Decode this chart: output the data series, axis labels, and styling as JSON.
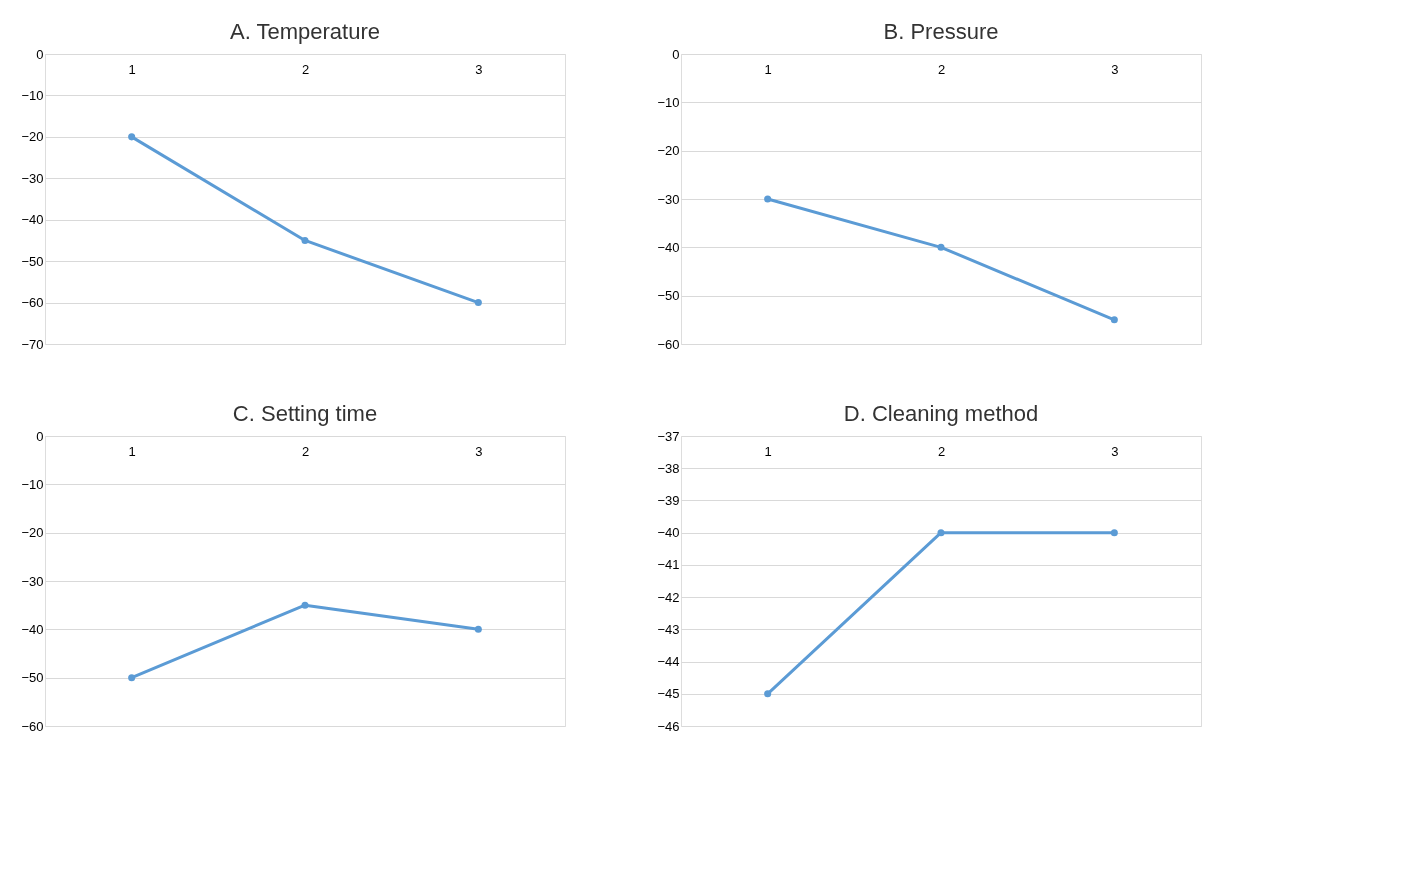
{
  "chart_data": [
    {
      "type": "line",
      "title": "A.     Temperature",
      "categories": [
        "1",
        "2",
        "3"
      ],
      "series": [
        {
          "color": "#5b9bd5",
          "values": [
            -20,
            -45,
            -60
          ]
        }
      ],
      "ylim": [
        -70,
        0
      ],
      "yticks": [
        -70,
        -60,
        -50,
        -40,
        -30,
        -20,
        -10,
        0
      ],
      "grid": "y",
      "marker": "circle",
      "legend": false
    },
    {
      "type": "line",
      "title": "B.     Pressure",
      "categories": [
        "1",
        "2",
        "3"
      ],
      "series": [
        {
          "color": "#5b9bd5",
          "values": [
            -30,
            -40,
            -55
          ]
        }
      ],
      "ylim": [
        -60,
        0
      ],
      "yticks": [
        -60,
        -50,
        -40,
        -30,
        -20,
        -10,
        0
      ],
      "grid": "y",
      "marker": "circle",
      "legend": false
    },
    {
      "type": "line",
      "title": "C.     Setting time",
      "categories": [
        "1",
        "2",
        "3"
      ],
      "series": [
        {
          "color": "#5b9bd5",
          "values": [
            -50,
            -35,
            -40
          ]
        }
      ],
      "ylim": [
        -60,
        0
      ],
      "yticks": [
        -60,
        -50,
        -40,
        -30,
        -20,
        -10,
        0
      ],
      "grid": "y",
      "marker": "circle",
      "legend": false
    },
    {
      "type": "line",
      "title": "D.     Cleaning method",
      "categories": [
        "1",
        "2",
        "3"
      ],
      "series": [
        {
          "color": "#5b9bd5",
          "values": [
            -45,
            -40,
            -40
          ]
        }
      ],
      "ylim": [
        -46,
        -37
      ],
      "yticks": [
        -46,
        -45,
        -44,
        -43,
        -42,
        -41,
        -40,
        -39,
        -38,
        -37
      ],
      "grid": "y",
      "marker": "circle",
      "legend": false
    }
  ]
}
